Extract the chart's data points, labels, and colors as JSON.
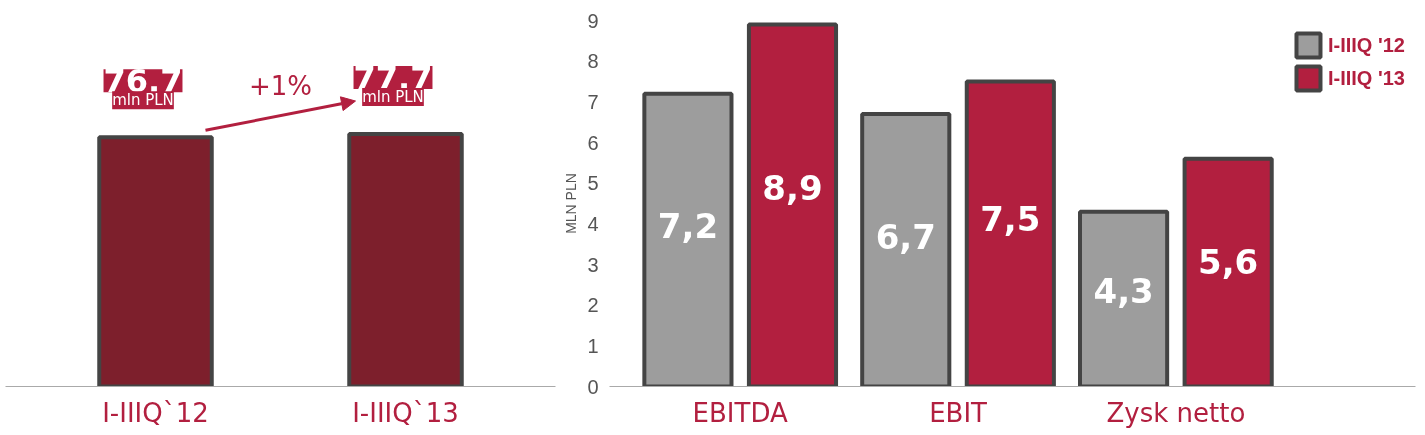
{
  "chart_data": [
    {
      "type": "bar",
      "categories": [
        "I-IIIQ`12",
        "I-IIIQ`13"
      ],
      "values": [
        76.7,
        77.7
      ],
      "color": "#7d1f2c",
      "value_labels": [
        "76,7",
        "77,7"
      ],
      "annotations": [
        {
          "text": "mln PLN",
          "x": "I-IIIQ`12",
          "y": 76.7
        },
        {
          "text": "mln PLN",
          "x": "I-IIIQ`13",
          "y": 77.7
        },
        "+1%"
      ],
      "grid": false,
      "legend": false,
      "tick_labels": "x"
    },
    {
      "type": "bar",
      "categories": [
        "EBITDA",
        "EBIT",
        "Zysk netto"
      ],
      "ylabel": "MLN PLN",
      "series": [
        {
          "name": "I-IIIQ '12",
          "color": "#9d9d9d",
          "values": [
            7.2,
            6.7,
            4.3
          ],
          "value_labels": [
            "7,2",
            "6,7",
            "4,3"
          ]
        },
        {
          "name": "I-IIIQ '13",
          "color": "#b21f3f",
          "values": [
            8.9,
            7.5,
            5.6
          ],
          "value_labels": [
            "8,9",
            "7,5",
            "5,6"
          ]
        }
      ],
      "ylim": [
        0,
        9
      ],
      "yticks": [
        0,
        1,
        2,
        3,
        4,
        5,
        6,
        7,
        8,
        9
      ],
      "grid": false,
      "legend": "top right"
    }
  ]
}
